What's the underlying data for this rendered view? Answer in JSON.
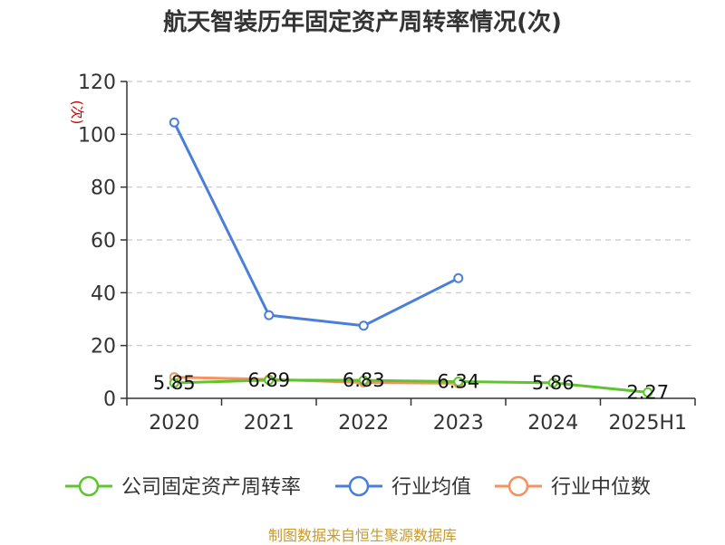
{
  "chart_data": {
    "type": "line",
    "title": "航天智装历年固定资产周转率情况(次)",
    "ylabel": "(次)",
    "categories": [
      "2020",
      "2021",
      "2022",
      "2023",
      "2024",
      "2025H1"
    ],
    "ylim": [
      0,
      120
    ],
    "yticks": [
      0,
      20,
      40,
      60,
      80,
      100,
      120
    ],
    "grid": true,
    "legend_position": "bottom",
    "series": [
      {
        "name": "公司固定资产周转率",
        "color": "#5fc52e",
        "values": [
          5.85,
          6.89,
          6.83,
          6.34,
          5.86,
          2.27
        ],
        "labels": [
          "5.85",
          "6.89",
          "6.83",
          "6.34",
          "5.86",
          "2.27"
        ]
      },
      {
        "name": "行业均值",
        "color": "#4a7fd9",
        "values": [
          104.5,
          31.5,
          27.5,
          45.5,
          null,
          null
        ]
      },
      {
        "name": "行业中位数",
        "color": "#f5925f",
        "values": [
          8.0,
          7.2,
          6.0,
          5.7,
          null,
          null
        ]
      }
    ]
  },
  "source_note": "制图数据来自恒生聚源数据库"
}
